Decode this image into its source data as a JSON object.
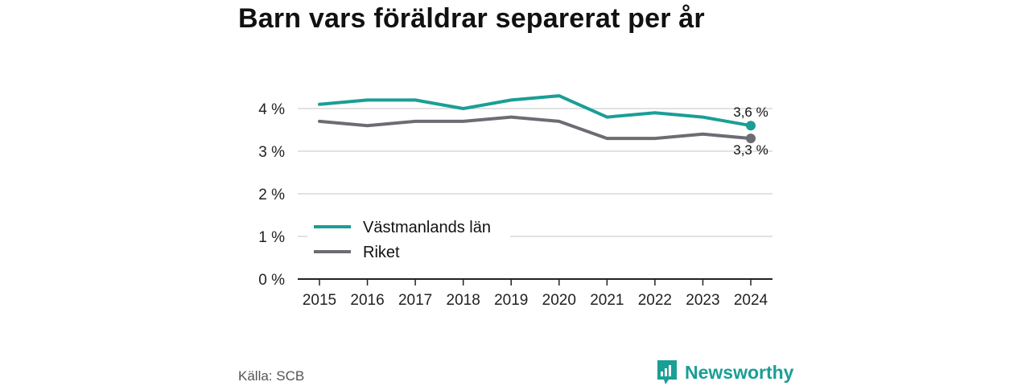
{
  "title": "Barn vars föräldrar separerat per år",
  "source": "Källa: SCB",
  "brand": {
    "name": "Newsworthy",
    "icon": "newsworthy-logo-icon",
    "color": "#1a9e96"
  },
  "chart_data": {
    "type": "line",
    "title": "Barn vars föräldrar separerat per år",
    "x": [
      "2015",
      "2016",
      "2017",
      "2018",
      "2019",
      "2020",
      "2021",
      "2022",
      "2023",
      "2024"
    ],
    "y_ticks": [
      "0 %",
      "1 %",
      "2 %",
      "3 %",
      "4 %"
    ],
    "ylim": [
      0,
      4.5
    ],
    "unit": "%",
    "grid": true,
    "legend": "bottom-left",
    "series": [
      {
        "name": "Västmanlands län",
        "color": "#1a9e96",
        "values": [
          4.1,
          4.2,
          4.2,
          4.0,
          4.2,
          4.3,
          3.8,
          3.9,
          3.8,
          3.6
        ],
        "end_label": "3,6 %"
      },
      {
        "name": "Riket",
        "color": "#6d6c72",
        "values": [
          3.7,
          3.6,
          3.7,
          3.7,
          3.8,
          3.7,
          3.3,
          3.3,
          3.4,
          3.3
        ],
        "end_label": "3,3 %"
      }
    ]
  }
}
